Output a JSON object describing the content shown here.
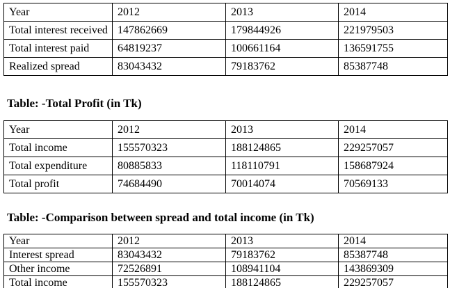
{
  "page": {
    "background_color": "#ffffff",
    "text_color": "#000000"
  },
  "tables": [
    {
      "id": "realized-spread",
      "header": [
        "Year",
        "2012",
        "2013",
        "2014"
      ],
      "rows": [
        [
          "Total interest received",
          "147862669",
          "179844926",
          "221979503"
        ],
        [
          "Total interest paid",
          "64819237",
          "100661164",
          "136591755"
        ],
        [
          "Realized spread",
          "83043432",
          "79183762",
          "85387748"
        ]
      ]
    },
    {
      "id": "total-profit",
      "title": "Table: -Total Profit (in Tk)",
      "header": [
        "Year",
        "2012",
        "2013",
        "2014"
      ],
      "rows": [
        [
          "Total income",
          "155570323",
          "188124865",
          "229257057"
        ],
        [
          "Total expenditure",
          "80885833",
          "118110791",
          "158687924"
        ],
        [
          "Total profit",
          "74684490",
          "70014074",
          "70569133"
        ]
      ]
    },
    {
      "id": "spread-income-comparison",
      "title": "Table: -Comparison between spread and total income (in Tk)",
      "header": [
        "Year",
        "2012",
        "2013",
        "2014"
      ],
      "rows": [
        [
          "Interest spread",
          "83043432",
          "79183762",
          "85387748"
        ],
        [
          "Other income",
          "72526891",
          "108941104",
          "143869309"
        ],
        [
          "Total income",
          "155570323",
          "188124865",
          "229257057"
        ]
      ]
    }
  ]
}
